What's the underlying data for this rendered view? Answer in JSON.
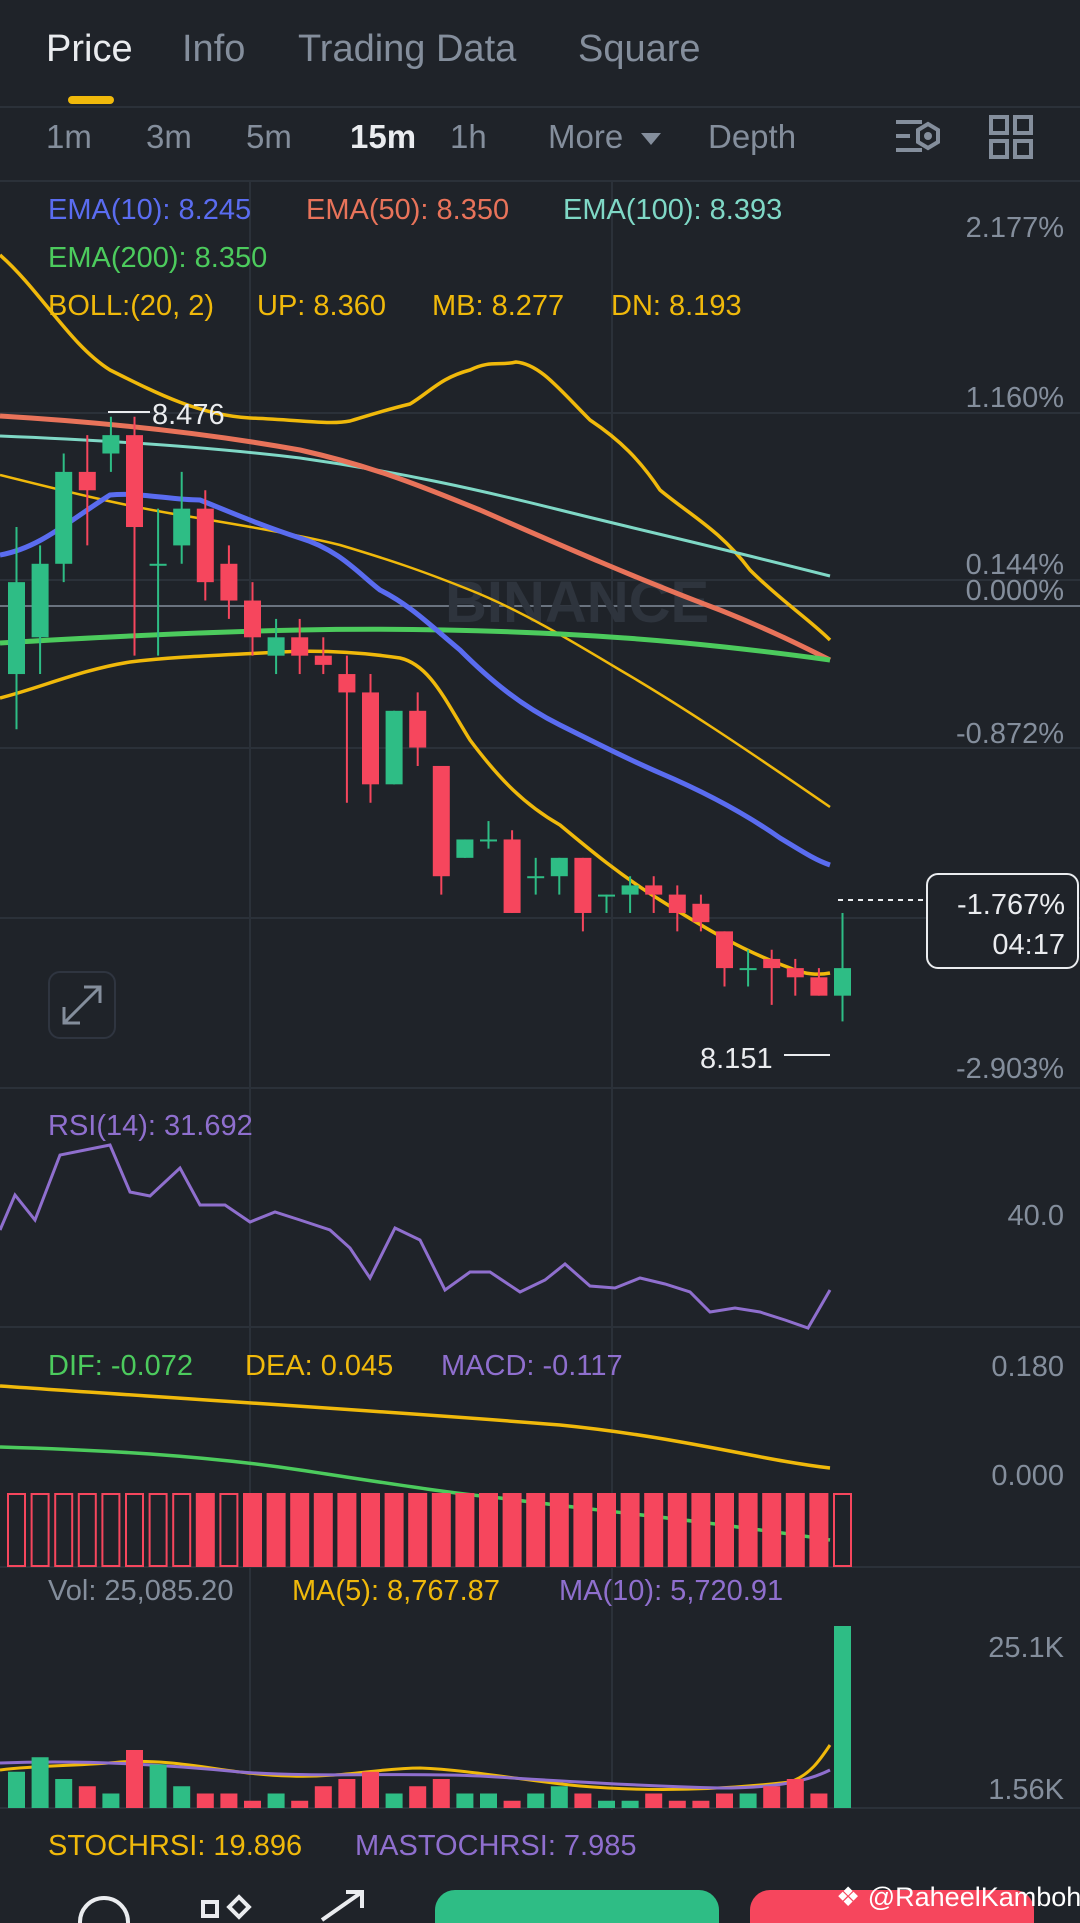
{
  "tabs": [
    {
      "label": "Price",
      "active": true
    },
    {
      "label": "Info",
      "active": false
    },
    {
      "label": "Trading Data",
      "active": false
    },
    {
      "label": "Square",
      "active": false
    }
  ],
  "timeframes": [
    {
      "label": "1m",
      "active": false
    },
    {
      "label": "3m",
      "active": false
    },
    {
      "label": "5m",
      "active": false
    },
    {
      "label": "15m",
      "active": true
    },
    {
      "label": "1h",
      "active": false
    }
  ],
  "more_label": "More",
  "depth_label": "Depth",
  "toolbar_icons": [
    "chart-settings-icon",
    "layout-grid-icon"
  ],
  "indicators": {
    "ema10": "EMA(10): 8.245",
    "ema50": "EMA(50): 8.350",
    "ema100": "EMA(100): 8.393",
    "ema200": "EMA(200): 8.350",
    "boll": "BOLL:(20, 2)",
    "up": "UP: 8.360",
    "mb": "MB: 8.277",
    "dn": "DN: 8.193"
  },
  "price_axis": [
    "2.177%",
    "1.160%",
    "0.144%",
    "0.000%",
    "-0.872%",
    "-2.903%"
  ],
  "high_marker": "8.476",
  "low_marker": "8.151",
  "watermark": "BINANCE",
  "current_tag": {
    "change": "-1.767%",
    "countdown": "04:17"
  },
  "rsi": {
    "label": "RSI(14): 31.692",
    "axis": "40.0"
  },
  "macd": {
    "dif": "DIF: -0.072",
    "dea": "DEA: 0.045",
    "macd": "MACD: -0.117",
    "axis_top": "0.180",
    "axis_mid": "0.000"
  },
  "volume": {
    "vol": "Vol: 25,085.20",
    "ma5": "MA(5): 8,767.87",
    "ma10": "MA(10): 5,720.91",
    "axis_top": "25.1K",
    "axis_bottom": "1.56K"
  },
  "stochrsi": {
    "stoch": "STOCHRSI: 19.896",
    "mastoch": "MASTOCHRSI: 7.985"
  },
  "attribution": "@RaheelKamboh",
  "colors": {
    "background": "#1f2329",
    "up": "#2ebd85",
    "down": "#f6465d",
    "ema10": "#5a6cf0",
    "ema50": "#e8735a",
    "ema100": "#7fd8c6",
    "ema200": "#4ccb5d",
    "boll": "#f0b90b",
    "rsi": "#8f6fce",
    "accent": "#f0b90b"
  },
  "chart_data": {
    "type": "candlestick",
    "interval": "15m",
    "note_units": "price",
    "candles": [
      {
        "o": 8.34,
        "h": 8.42,
        "l": 8.31,
        "c": 8.39
      },
      {
        "o": 8.36,
        "h": 8.41,
        "l": 8.34,
        "c": 8.4
      },
      {
        "o": 8.4,
        "h": 8.46,
        "l": 8.39,
        "c": 8.45
      },
      {
        "o": 8.45,
        "h": 8.47,
        "l": 8.41,
        "c": 8.44
      },
      {
        "o": 8.46,
        "h": 8.48,
        "l": 8.45,
        "c": 8.47
      },
      {
        "o": 8.47,
        "h": 8.48,
        "l": 8.35,
        "c": 8.42
      },
      {
        "o": 8.4,
        "h": 8.43,
        "l": 8.35,
        "c": 8.4
      },
      {
        "o": 8.41,
        "h": 8.45,
        "l": 8.4,
        "c": 8.43
      },
      {
        "o": 8.43,
        "h": 8.44,
        "l": 8.38,
        "c": 8.39
      },
      {
        "o": 8.4,
        "h": 8.41,
        "l": 8.37,
        "c": 8.38
      },
      {
        "o": 8.38,
        "h": 8.39,
        "l": 8.35,
        "c": 8.36
      },
      {
        "o": 8.35,
        "h": 8.37,
        "l": 8.34,
        "c": 8.36
      },
      {
        "o": 8.36,
        "h": 8.37,
        "l": 8.34,
        "c": 8.35
      },
      {
        "o": 8.35,
        "h": 8.36,
        "l": 8.34,
        "c": 8.345
      },
      {
        "o": 8.34,
        "h": 8.35,
        "l": 8.27,
        "c": 8.33
      },
      {
        "o": 8.33,
        "h": 8.34,
        "l": 8.27,
        "c": 8.28
      },
      {
        "o": 8.28,
        "h": 8.32,
        "l": 8.28,
        "c": 8.32
      },
      {
        "o": 8.32,
        "h": 8.33,
        "l": 8.29,
        "c": 8.3
      },
      {
        "o": 8.29,
        "h": 8.29,
        "l": 8.22,
        "c": 8.23
      },
      {
        "o": 8.24,
        "h": 8.25,
        "l": 8.24,
        "c": 8.25
      },
      {
        "o": 8.25,
        "h": 8.26,
        "l": 8.245,
        "c": 8.25
      },
      {
        "o": 8.25,
        "h": 8.255,
        "l": 8.21,
        "c": 8.21
      },
      {
        "o": 8.23,
        "h": 8.24,
        "l": 8.22,
        "c": 8.23
      },
      {
        "o": 8.23,
        "h": 8.24,
        "l": 8.22,
        "c": 8.24
      },
      {
        "o": 8.24,
        "h": 8.24,
        "l": 8.2,
        "c": 8.21
      },
      {
        "o": 8.22,
        "h": 8.22,
        "l": 8.21,
        "c": 8.22
      },
      {
        "o": 8.22,
        "h": 8.23,
        "l": 8.21,
        "c": 8.225
      },
      {
        "o": 8.225,
        "h": 8.23,
        "l": 8.21,
        "c": 8.22
      },
      {
        "o": 8.22,
        "h": 8.225,
        "l": 8.2,
        "c": 8.21
      },
      {
        "o": 8.215,
        "h": 8.22,
        "l": 8.2,
        "c": 8.205
      },
      {
        "o": 8.2,
        "h": 8.2,
        "l": 8.17,
        "c": 8.18
      },
      {
        "o": 8.18,
        "h": 8.19,
        "l": 8.17,
        "c": 8.18
      },
      {
        "o": 8.185,
        "h": 8.19,
        "l": 8.16,
        "c": 8.18
      },
      {
        "o": 8.18,
        "h": 8.185,
        "l": 8.165,
        "c": 8.175
      },
      {
        "o": 8.175,
        "h": 8.18,
        "l": 8.165,
        "c": 8.165
      },
      {
        "o": 8.165,
        "h": 8.21,
        "l": 8.151,
        "c": 8.18
      }
    ],
    "volume": [
      5,
      7,
      4,
      3,
      2,
      8,
      6,
      3,
      2,
      2,
      1,
      2,
      1,
      3,
      4,
      5,
      2,
      3,
      4,
      2,
      2,
      1,
      2,
      3,
      2,
      1,
      1,
      2,
      1,
      1,
      2,
      2,
      3,
      4,
      2,
      25.1
    ],
    "rsi": [
      40,
      47,
      49,
      52,
      48,
      47,
      45,
      45,
      44,
      43,
      42,
      41,
      40,
      38,
      38,
      39,
      36,
      37,
      34,
      35,
      35,
      33,
      33,
      34,
      33,
      33,
      34,
      33,
      32,
      31,
      31,
      31,
      30,
      29,
      28,
      32
    ],
    "y_axis_pct": [
      "2.177%",
      "1.160%",
      "0.144%",
      "0.000%",
      "-0.872%",
      "-2.903%"
    ]
  }
}
